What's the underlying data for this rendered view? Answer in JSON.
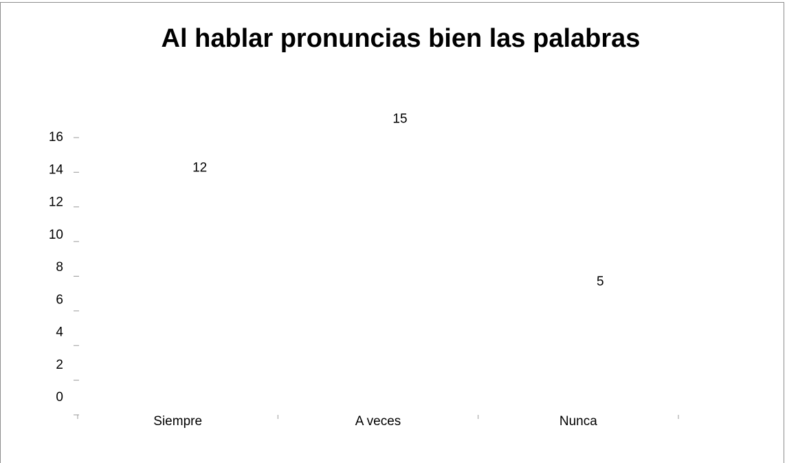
{
  "chart_data": {
    "type": "bar",
    "title": "Al hablar pronuncias bien las palabras",
    "categories": [
      "Siempre",
      "A veces",
      "Nunca"
    ],
    "values": [
      12,
      15,
      5
    ],
    "color": "#ffffff",
    "ylim": [
      0,
      16
    ],
    "yticks": [
      0,
      2,
      4,
      6,
      8,
      10,
      12,
      14,
      16
    ],
    "grid": false
  }
}
